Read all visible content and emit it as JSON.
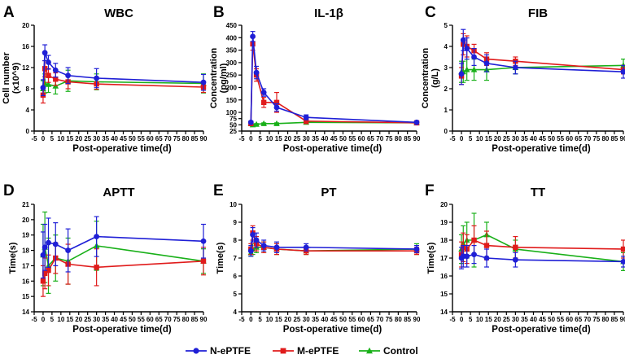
{
  "legend": [
    {
      "name": "N-ePTFE",
      "color": "#1f1fd6",
      "marker": "circle"
    },
    {
      "name": "M-ePTFE",
      "color": "#e01b1b",
      "marker": "square"
    },
    {
      "name": "Control",
      "color": "#19b019",
      "marker": "triangle"
    }
  ],
  "chart_data": [
    {
      "type": "line",
      "panel_label": "A",
      "title": "WBC",
      "xlabel": "Post-operative time(d)",
      "ylabel": [
        "Cell number",
        "(x10^9)"
      ],
      "xlim": [
        -5,
        90
      ],
      "xticks": [
        -5,
        0,
        5,
        10,
        15,
        20,
        25,
        30,
        35,
        40,
        45,
        50,
        55,
        60,
        65,
        70,
        75,
        80,
        85,
        90
      ],
      "ylim": [
        0,
        20
      ],
      "yticks": [
        0,
        4,
        8,
        12,
        16,
        20
      ],
      "series": [
        {
          "name": "N-ePTFE",
          "x": [
            0,
            1,
            3,
            7,
            14,
            30,
            90
          ],
          "y": [
            8.2,
            14.8,
            13.0,
            11.5,
            10.5,
            10.0,
            9.2
          ],
          "err": [
            1.5,
            1.5,
            1.3,
            1.3,
            1.5,
            1.8,
            1.5
          ]
        },
        {
          "name": "M-ePTFE",
          "x": [
            0,
            1,
            3,
            7,
            14,
            30,
            90
          ],
          "y": [
            6.8,
            11.8,
            10.5,
            9.8,
            9.3,
            8.9,
            8.3
          ],
          "err": [
            1.5,
            1.5,
            1.3,
            1.2,
            1.3,
            1.0,
            1.0
          ]
        },
        {
          "name": "Control",
          "x": [
            0,
            1,
            3,
            7,
            14,
            30,
            90
          ],
          "y": [
            8.0,
            9.0,
            8.8,
            8.5,
            9.5,
            9.3,
            9.0
          ],
          "err": [
            1.5,
            1.8,
            1.5,
            1.5,
            2.0,
            1.5,
            1.8
          ]
        }
      ]
    },
    {
      "type": "line",
      "panel_label": "B",
      "title": "IL-1β",
      "xlabel": "Post-operative time(d)",
      "ylabel": [
        "Concentration",
        "(pg/ml)"
      ],
      "xlim": [
        -5,
        90
      ],
      "xticks": [
        -5,
        0,
        5,
        10,
        15,
        20,
        25,
        30,
        35,
        40,
        45,
        50,
        55,
        60,
        65,
        70,
        75,
        80,
        85,
        90
      ],
      "ylim": [
        25,
        450
      ],
      "yticks": [
        25,
        50,
        75,
        100,
        150,
        200,
        250,
        300,
        350,
        400,
        450
      ],
      "series": [
        {
          "name": "N-ePTFE",
          "x": [
            0,
            1,
            3,
            7,
            14,
            30,
            90
          ],
          "y": [
            60,
            405,
            260,
            180,
            120,
            80,
            60
          ],
          "err": [
            5,
            20,
            25,
            15,
            15,
            10,
            5
          ]
        },
        {
          "name": "M-ePTFE",
          "x": [
            0,
            1,
            3,
            7,
            14,
            30,
            90
          ],
          "y": [
            55,
            375,
            250,
            140,
            140,
            65,
            58
          ],
          "err": [
            5,
            25,
            25,
            20,
            40,
            10,
            5
          ]
        },
        {
          "name": "Control",
          "x": [
            0,
            1,
            3,
            7,
            14,
            30,
            90
          ],
          "y": [
            55,
            50,
            52,
            55,
            55,
            60,
            58
          ],
          "err": [
            3,
            3,
            3,
            3,
            3,
            3,
            3
          ]
        }
      ]
    },
    {
      "type": "line",
      "panel_label": "C",
      "title": "FIB",
      "xlabel": "Post-operative time(d)",
      "ylabel": [
        "Concentration",
        "(g/L)"
      ],
      "xlim": [
        -5,
        90
      ],
      "xticks": [
        -5,
        0,
        5,
        10,
        15,
        20,
        25,
        30,
        35,
        40,
        45,
        50,
        55,
        60,
        65,
        70,
        75,
        80,
        85,
        90
      ],
      "ylim": [
        0,
        5
      ],
      "yticks": [
        0,
        1,
        2,
        3,
        4,
        5
      ],
      "series": [
        {
          "name": "N-ePTFE",
          "x": [
            0,
            1,
            3,
            7,
            14,
            30,
            90
          ],
          "y": [
            2.7,
            4.3,
            3.9,
            3.5,
            3.2,
            3.0,
            2.8
          ],
          "err": [
            0.5,
            0.5,
            0.5,
            0.4,
            0.4,
            0.3,
            0.3
          ]
        },
        {
          "name": "M-ePTFE",
          "x": [
            0,
            1,
            3,
            7,
            14,
            30,
            90
          ],
          "y": [
            2.6,
            4.1,
            4.0,
            3.8,
            3.4,
            3.3,
            2.9
          ],
          "err": [
            0.4,
            0.5,
            0.5,
            0.3,
            0.3,
            0.2,
            0.2
          ]
        },
        {
          "name": "Control",
          "x": [
            0,
            1,
            3,
            7,
            14,
            30,
            90
          ],
          "y": [
            2.8,
            2.8,
            2.9,
            2.9,
            2.9,
            3.0,
            3.1
          ],
          "err": [
            0.5,
            0.5,
            0.5,
            0.5,
            0.5,
            0.3,
            0.3
          ]
        }
      ]
    },
    {
      "type": "line",
      "panel_label": "D",
      "title": "APTT",
      "xlabel": "Post-operative time(d)",
      "ylabel": [
        "Time(s)"
      ],
      "xlim": [
        -5,
        90
      ],
      "xticks": [
        -5,
        0,
        5,
        10,
        15,
        20,
        25,
        30,
        35,
        40,
        45,
        50,
        55,
        60,
        65,
        70,
        75,
        80,
        85,
        90
      ],
      "ylim": [
        14,
        21
      ],
      "yticks": [
        14,
        15,
        16,
        17,
        18,
        19,
        20,
        21
      ],
      "series": [
        {
          "name": "N-ePTFE",
          "x": [
            0,
            1,
            3,
            7,
            14,
            30,
            90
          ],
          "y": [
            17.7,
            18.2,
            18.5,
            18.4,
            18.0,
            18.9,
            18.6
          ],
          "err": [
            1.5,
            1.5,
            1.6,
            1.4,
            1.4,
            1.3,
            1.1
          ]
        },
        {
          "name": "M-ePTFE",
          "x": [
            0,
            1,
            3,
            7,
            14,
            30,
            90
          ],
          "y": [
            16.0,
            16.5,
            16.7,
            17.5,
            17.1,
            16.9,
            17.3
          ],
          "err": [
            1.0,
            1.0,
            1.0,
            1.0,
            1.3,
            1.2,
            0.9
          ]
        },
        {
          "name": "Control",
          "x": [
            0,
            1,
            3,
            7,
            14,
            30,
            90
          ],
          "y": [
            17.7,
            18.2,
            17.0,
            17.5,
            17.3,
            18.3,
            17.3
          ],
          "err": [
            2.0,
            2.3,
            1.8,
            1.5,
            1.5,
            1.6,
            0.8
          ]
        }
      ]
    },
    {
      "type": "line",
      "panel_label": "E",
      "title": "PT",
      "xlabel": "Post-operative time(d)",
      "ylabel": [
        "Time(s)"
      ],
      "xlim": [
        -5,
        90
      ],
      "xticks": [
        -5,
        0,
        5,
        10,
        15,
        20,
        25,
        30,
        35,
        40,
        45,
        50,
        55,
        60,
        65,
        70,
        75,
        80,
        85,
        90
      ],
      "ylim": [
        4,
        10
      ],
      "yticks": [
        4,
        5,
        6,
        7,
        8,
        9,
        10
      ],
      "series": [
        {
          "name": "N-ePTFE",
          "x": [
            0,
            1,
            3,
            7,
            14,
            30,
            90
          ],
          "y": [
            7.4,
            8.3,
            8.0,
            7.7,
            7.6,
            7.6,
            7.5
          ],
          "err": [
            0.3,
            0.4,
            0.4,
            0.3,
            0.3,
            0.2,
            0.2
          ]
        },
        {
          "name": "M-ePTFE",
          "x": [
            0,
            1,
            3,
            7,
            14,
            30,
            90
          ],
          "y": [
            7.5,
            8.4,
            7.8,
            7.6,
            7.5,
            7.4,
            7.4
          ],
          "err": [
            0.3,
            0.4,
            0.4,
            0.3,
            0.3,
            0.2,
            0.2
          ]
        },
        {
          "name": "Control",
          "x": [
            0,
            1,
            3,
            7,
            14,
            30,
            90
          ],
          "y": [
            7.3,
            7.5,
            7.6,
            7.6,
            7.5,
            7.4,
            7.5
          ],
          "err": [
            0.2,
            0.3,
            0.3,
            0.3,
            0.3,
            0.2,
            0.3
          ]
        }
      ]
    },
    {
      "type": "line",
      "panel_label": "F",
      "title": "TT",
      "xlabel": "Post-operative time(d)",
      "ylabel": [
        "Time(s)"
      ],
      "xlim": [
        -5,
        90
      ],
      "xticks": [
        -5,
        0,
        5,
        10,
        15,
        20,
        25,
        30,
        35,
        40,
        45,
        50,
        55,
        60,
        65,
        70,
        75,
        80,
        85,
        90
      ],
      "ylim": [
        14,
        20
      ],
      "yticks": [
        14,
        15,
        16,
        17,
        18,
        19,
        20
      ],
      "series": [
        {
          "name": "N-ePTFE",
          "x": [
            0,
            1,
            3,
            7,
            14,
            30,
            90
          ],
          "y": [
            17.0,
            17.1,
            17.1,
            17.2,
            17.0,
            16.9,
            16.8
          ],
          "err": [
            0.6,
            0.6,
            0.6,
            0.5,
            0.5,
            0.4,
            0.3
          ]
        },
        {
          "name": "M-ePTFE",
          "x": [
            0,
            1,
            3,
            7,
            14,
            30,
            90
          ],
          "y": [
            17.2,
            17.6,
            17.5,
            18.0,
            17.7,
            17.6,
            17.5
          ],
          "err": [
            0.7,
            0.8,
            0.8,
            0.8,
            0.8,
            0.6,
            0.5
          ]
        },
        {
          "name": "Control",
          "x": [
            0,
            1,
            3,
            7,
            14,
            30,
            90
          ],
          "y": [
            17.5,
            17.8,
            18.0,
            18.0,
            18.3,
            17.5,
            16.8
          ],
          "err": [
            0.8,
            1.0,
            1.0,
            1.5,
            0.7,
            0.5,
            0.5
          ]
        }
      ]
    }
  ]
}
